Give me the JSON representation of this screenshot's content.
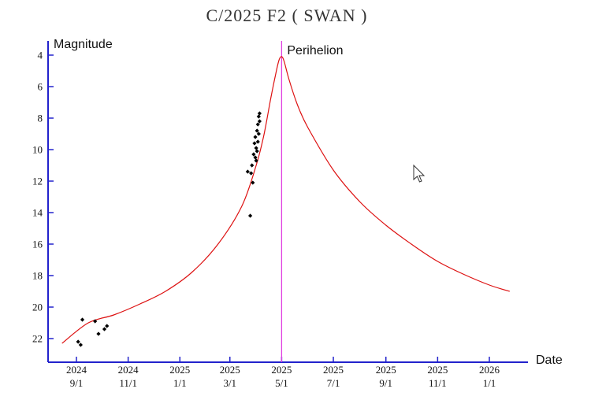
{
  "chart_data": {
    "type": "scatter",
    "title": "C/2025 F2 ( SWAN )",
    "ylabel": "Magnitude",
    "xlabel": "Date",
    "y_inverted": true,
    "ylim": [
      23.2,
      3.6
    ],
    "xlim": [
      "2024-08-15",
      "2026-02-15"
    ],
    "y_ticks": [
      4,
      6,
      8,
      10,
      12,
      14,
      16,
      18,
      20,
      22
    ],
    "x_ticks": [
      {
        "date": "2024-09-01",
        "year": "2024",
        "md": "9/1"
      },
      {
        "date": "2024-11-01",
        "year": "2024",
        "md": "11/1"
      },
      {
        "date": "2025-01-01",
        "year": "2025",
        "md": "1/1"
      },
      {
        "date": "2025-03-01",
        "year": "2025",
        "md": "3/1"
      },
      {
        "date": "2025-05-01",
        "year": "2025",
        "md": "5/1"
      },
      {
        "date": "2025-07-01",
        "year": "2025",
        "md": "7/1"
      },
      {
        "date": "2025-09-01",
        "year": "2025",
        "md": "9/1"
      },
      {
        "date": "2025-11-01",
        "year": "2025",
        "md": "11/1"
      },
      {
        "date": "2026-01-01",
        "year": "2026",
        "md": "1/1"
      }
    ],
    "perihelion": {
      "date": "2025-05-01",
      "label": "Perihelion",
      "color": "#e040e0"
    },
    "grid": false,
    "colors": {
      "axis": "#2222cc",
      "curve": "#dd1111",
      "points": "#000000"
    },
    "series": [
      {
        "kind": "line",
        "points": [
          {
            "x": "2024-08-15",
            "y": 22.3
          },
          {
            "x": "2024-09-15",
            "y": 21.0
          },
          {
            "x": "2024-10-15",
            "y": 20.5
          },
          {
            "x": "2024-11-15",
            "y": 19.8
          },
          {
            "x": "2024-12-15",
            "y": 19.0
          },
          {
            "x": "2025-01-15",
            "y": 17.8
          },
          {
            "x": "2025-02-15",
            "y": 16.0
          },
          {
            "x": "2025-03-15",
            "y": 13.6
          },
          {
            "x": "2025-04-01",
            "y": 11.0
          },
          {
            "x": "2025-04-10",
            "y": 9.1
          },
          {
            "x": "2025-04-18",
            "y": 6.8
          },
          {
            "x": "2025-04-24",
            "y": 5.2
          },
          {
            "x": "2025-04-28",
            "y": 4.3
          },
          {
            "x": "2025-05-01",
            "y": 4.1
          },
          {
            "x": "2025-05-04",
            "y": 4.4
          },
          {
            "x": "2025-05-10",
            "y": 5.6
          },
          {
            "x": "2025-05-20",
            "y": 7.2
          },
          {
            "x": "2025-06-01",
            "y": 8.6
          },
          {
            "x": "2025-07-01",
            "y": 11.3
          },
          {
            "x": "2025-08-01",
            "y": 13.3
          },
          {
            "x": "2025-09-01",
            "y": 14.8
          },
          {
            "x": "2025-10-01",
            "y": 16.0
          },
          {
            "x": "2025-11-01",
            "y": 17.1
          },
          {
            "x": "2025-12-01",
            "y": 17.9
          },
          {
            "x": "2026-01-01",
            "y": 18.6
          },
          {
            "x": "2026-01-25",
            "y": 19.0
          }
        ]
      },
      {
        "kind": "scatter",
        "points": [
          {
            "x": "2024-09-03",
            "y": 22.2
          },
          {
            "x": "2024-09-06",
            "y": 22.4
          },
          {
            "x": "2024-09-08",
            "y": 20.8
          },
          {
            "x": "2024-09-23",
            "y": 20.9
          },
          {
            "x": "2024-09-27",
            "y": 21.7
          },
          {
            "x": "2024-10-04",
            "y": 21.4
          },
          {
            "x": "2024-10-07",
            "y": 21.2
          },
          {
            "x": "2025-03-22",
            "y": 11.4
          },
          {
            "x": "2025-03-25",
            "y": 14.2
          },
          {
            "x": "2025-03-26",
            "y": 11.5
          },
          {
            "x": "2025-03-27",
            "y": 11.0
          },
          {
            "x": "2025-03-28",
            "y": 12.1
          },
          {
            "x": "2025-03-29",
            "y": 10.3
          },
          {
            "x": "2025-03-30",
            "y": 9.6
          },
          {
            "x": "2025-03-31",
            "y": 10.5
          },
          {
            "x": "2025-03-31",
            "y": 9.2
          },
          {
            "x": "2025-04-01",
            "y": 10.7
          },
          {
            "x": "2025-04-01",
            "y": 9.9
          },
          {
            "x": "2025-04-02",
            "y": 8.8
          },
          {
            "x": "2025-04-02",
            "y": 10.1
          },
          {
            "x": "2025-04-03",
            "y": 8.4
          },
          {
            "x": "2025-04-03",
            "y": 9.5
          },
          {
            "x": "2025-04-04",
            "y": 7.9
          },
          {
            "x": "2025-04-04",
            "y": 9.0
          },
          {
            "x": "2025-04-05",
            "y": 8.2
          },
          {
            "x": "2025-04-05",
            "y": 7.7
          }
        ]
      }
    ]
  }
}
